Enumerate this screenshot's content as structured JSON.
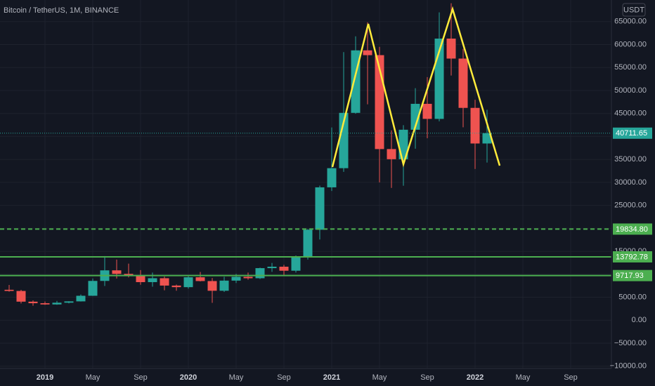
{
  "chart_data": {
    "type": "candlestick",
    "title": "Bitcoin / TetherUS, 1M, BINANCE",
    "currency": "USDT",
    "categories": [
      null,
      null,
      null,
      "2019",
      null,
      null,
      null,
      "May",
      null,
      null,
      null,
      "Sep",
      null,
      null,
      null,
      "2020",
      null,
      null,
      null,
      "May",
      null,
      null,
      null,
      "Sep",
      null,
      null,
      null,
      "2021",
      null,
      null,
      null,
      "May",
      null,
      null,
      null,
      "Sep",
      null,
      null,
      null,
      "2022",
      null,
      null,
      null,
      "May",
      null,
      null,
      null,
      "Sep",
      null
    ],
    "open": [
      6626,
      6369,
      4041,
      3701,
      3434,
      3814,
      4102,
      5321,
      8555,
      10855,
      10085,
      9588,
      8289,
      9140,
      7541,
      7195,
      9351,
      8523,
      6412,
      8620,
      9448,
      9138,
      11335,
      11649,
      10776,
      13791,
      19695,
      28923,
      33092,
      45134,
      58739,
      57697,
      37254,
      35045,
      41461,
      47100,
      43820,
      61300,
      56950,
      46216,
      38466,
      null,
      null,
      null,
      null,
      null,
      null,
      null,
      null
    ],
    "high": [
      7680,
      6615,
      4312,
      4069,
      4198,
      4140,
      5600,
      9074,
      13970,
      13200,
      12325,
      10905,
      10370,
      9513,
      7750,
      9578,
      10500,
      9189,
      9460,
      10080,
      10380,
      11444,
      12468,
      12050,
      14100,
      19863,
      29300,
      41950,
      58352,
      61788,
      64854,
      59500,
      41330,
      42448,
      50500,
      52920,
      67000,
      69000,
      59053,
      47990,
      45821,
      null,
      null,
      null,
      null,
      null,
      null,
      null,
      null
    ],
    "low": [
      6205,
      3652,
      3156,
      3349,
      3371,
      3670,
      4067,
      5300,
      7444,
      9080,
      9320,
      7710,
      7300,
      6515,
      6425,
      6871,
      8450,
      3782,
      6150,
      8106,
      8833,
      8977,
      10525,
      9825,
      10376,
      13195,
      17572,
      28130,
      32296,
      44950,
      47000,
      30000,
      28805,
      29278,
      37332,
      39600,
      43283,
      53256,
      42000,
      32917,
      34322,
      null,
      null,
      null,
      null,
      null,
      null,
      null,
      null
    ],
    "close": [
      6371,
      4041,
      3702,
      3434,
      3813,
      4103,
      5320,
      8555,
      10855,
      10085,
      9588,
      8289,
      9140,
      7541,
      7195,
      9350,
      8523,
      6410,
      8620,
      9448,
      9138,
      11335,
      11649,
      10776,
      13791,
      19695,
      28923,
      33092,
      45137,
      58740,
      57694,
      37253,
      35045,
      41461,
      47100,
      43824,
      61300,
      56950,
      46216,
      38466,
      40711.65,
      null,
      null,
      null,
      null,
      null,
      null,
      null,
      null
    ],
    "up_color": "#26a69a",
    "down_color": "#ef5350",
    "ylim": [
      -10500,
      69700
    ],
    "yticks": [
      {
        "value": -10000,
        "label": "−10000.00"
      },
      {
        "value": -5000,
        "label": "−5000.00"
      },
      {
        "value": 0,
        "label": "0.00"
      },
      {
        "value": 5000,
        "label": "5000.00"
      },
      {
        "value": 10000,
        "label": "10000.00"
      },
      {
        "value": 15000,
        "label": "15000.00"
      },
      {
        "value": 20000,
        "label": "20000.00"
      },
      {
        "value": 25000,
        "label": "25000.00"
      },
      {
        "value": 30000,
        "label": "30000.00"
      },
      {
        "value": 35000,
        "label": "35000.00"
      },
      {
        "value": 40000,
        "label": "40000.00"
      },
      {
        "value": 45000,
        "label": "45000.00"
      },
      {
        "value": 50000,
        "label": "50000.00"
      },
      {
        "value": 55000,
        "label": "55000.00"
      },
      {
        "value": 60000,
        "label": "60000.00"
      },
      {
        "value": 65000,
        "label": "65000.00"
      }
    ],
    "grid": true,
    "levels": [
      {
        "value": 19834.8,
        "label": "19834.80",
        "color": "#4caf50",
        "dashed": true
      },
      {
        "value": 13792.78,
        "label": "13792.78",
        "color": "#4caf50",
        "dashed": false
      },
      {
        "value": 9717.93,
        "label": "9717.93",
        "color": "#4caf50",
        "dashed": false
      }
    ],
    "last_price": {
      "value": 40711.65,
      "label": "40711.65",
      "color": "#26a69a"
    }
  }
}
